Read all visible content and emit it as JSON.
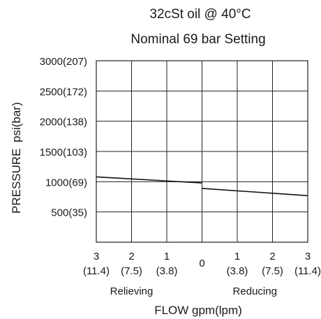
{
  "chart_data": {
    "type": "line",
    "title": "32cSt oil @ 40°C",
    "subtitle": "Nominal 69 bar Setting",
    "xlabel": "FLOW gpm(lpm)",
    "ylabel_main": "PRESSURE",
    "ylabel_unit": "psi(bar)",
    "xlim": [
      -3,
      3
    ],
    "ylim": [
      0,
      3000
    ],
    "grid": true,
    "x_ticks": [
      {
        "value": -3,
        "gpm": "3",
        "lpm": "(11.4)"
      },
      {
        "value": -2,
        "gpm": "2",
        "lpm": "(7.5)"
      },
      {
        "value": -1,
        "gpm": "1",
        "lpm": "(3.8)"
      },
      {
        "value": 0,
        "gpm": "0",
        "lpm": ""
      },
      {
        "value": 1,
        "gpm": "1",
        "lpm": "(3.8)"
      },
      {
        "value": 2,
        "gpm": "2",
        "lpm": "(7.5)"
      },
      {
        "value": 3,
        "gpm": "3",
        "lpm": "(11.4)"
      }
    ],
    "y_ticks": [
      {
        "value": 500,
        "label": "500(35)"
      },
      {
        "value": 1000,
        "label": "1000(69)"
      },
      {
        "value": 1500,
        "label": "1500(103)"
      },
      {
        "value": 2000,
        "label": "2000(138)"
      },
      {
        "value": 2500,
        "label": "2500(172)"
      },
      {
        "value": 3000,
        "label": "3000(207)"
      }
    ],
    "region_labels": [
      {
        "text": "Relieving",
        "x": -2
      },
      {
        "text": "Reducing",
        "x": 1.5
      }
    ],
    "series": [
      {
        "segment": "relieving",
        "x": [
          -3,
          0
        ],
        "y": [
          1080,
          980
        ]
      },
      {
        "segment": "reducing",
        "x": [
          0,
          3
        ],
        "y": [
          890,
          770
        ]
      }
    ]
  }
}
